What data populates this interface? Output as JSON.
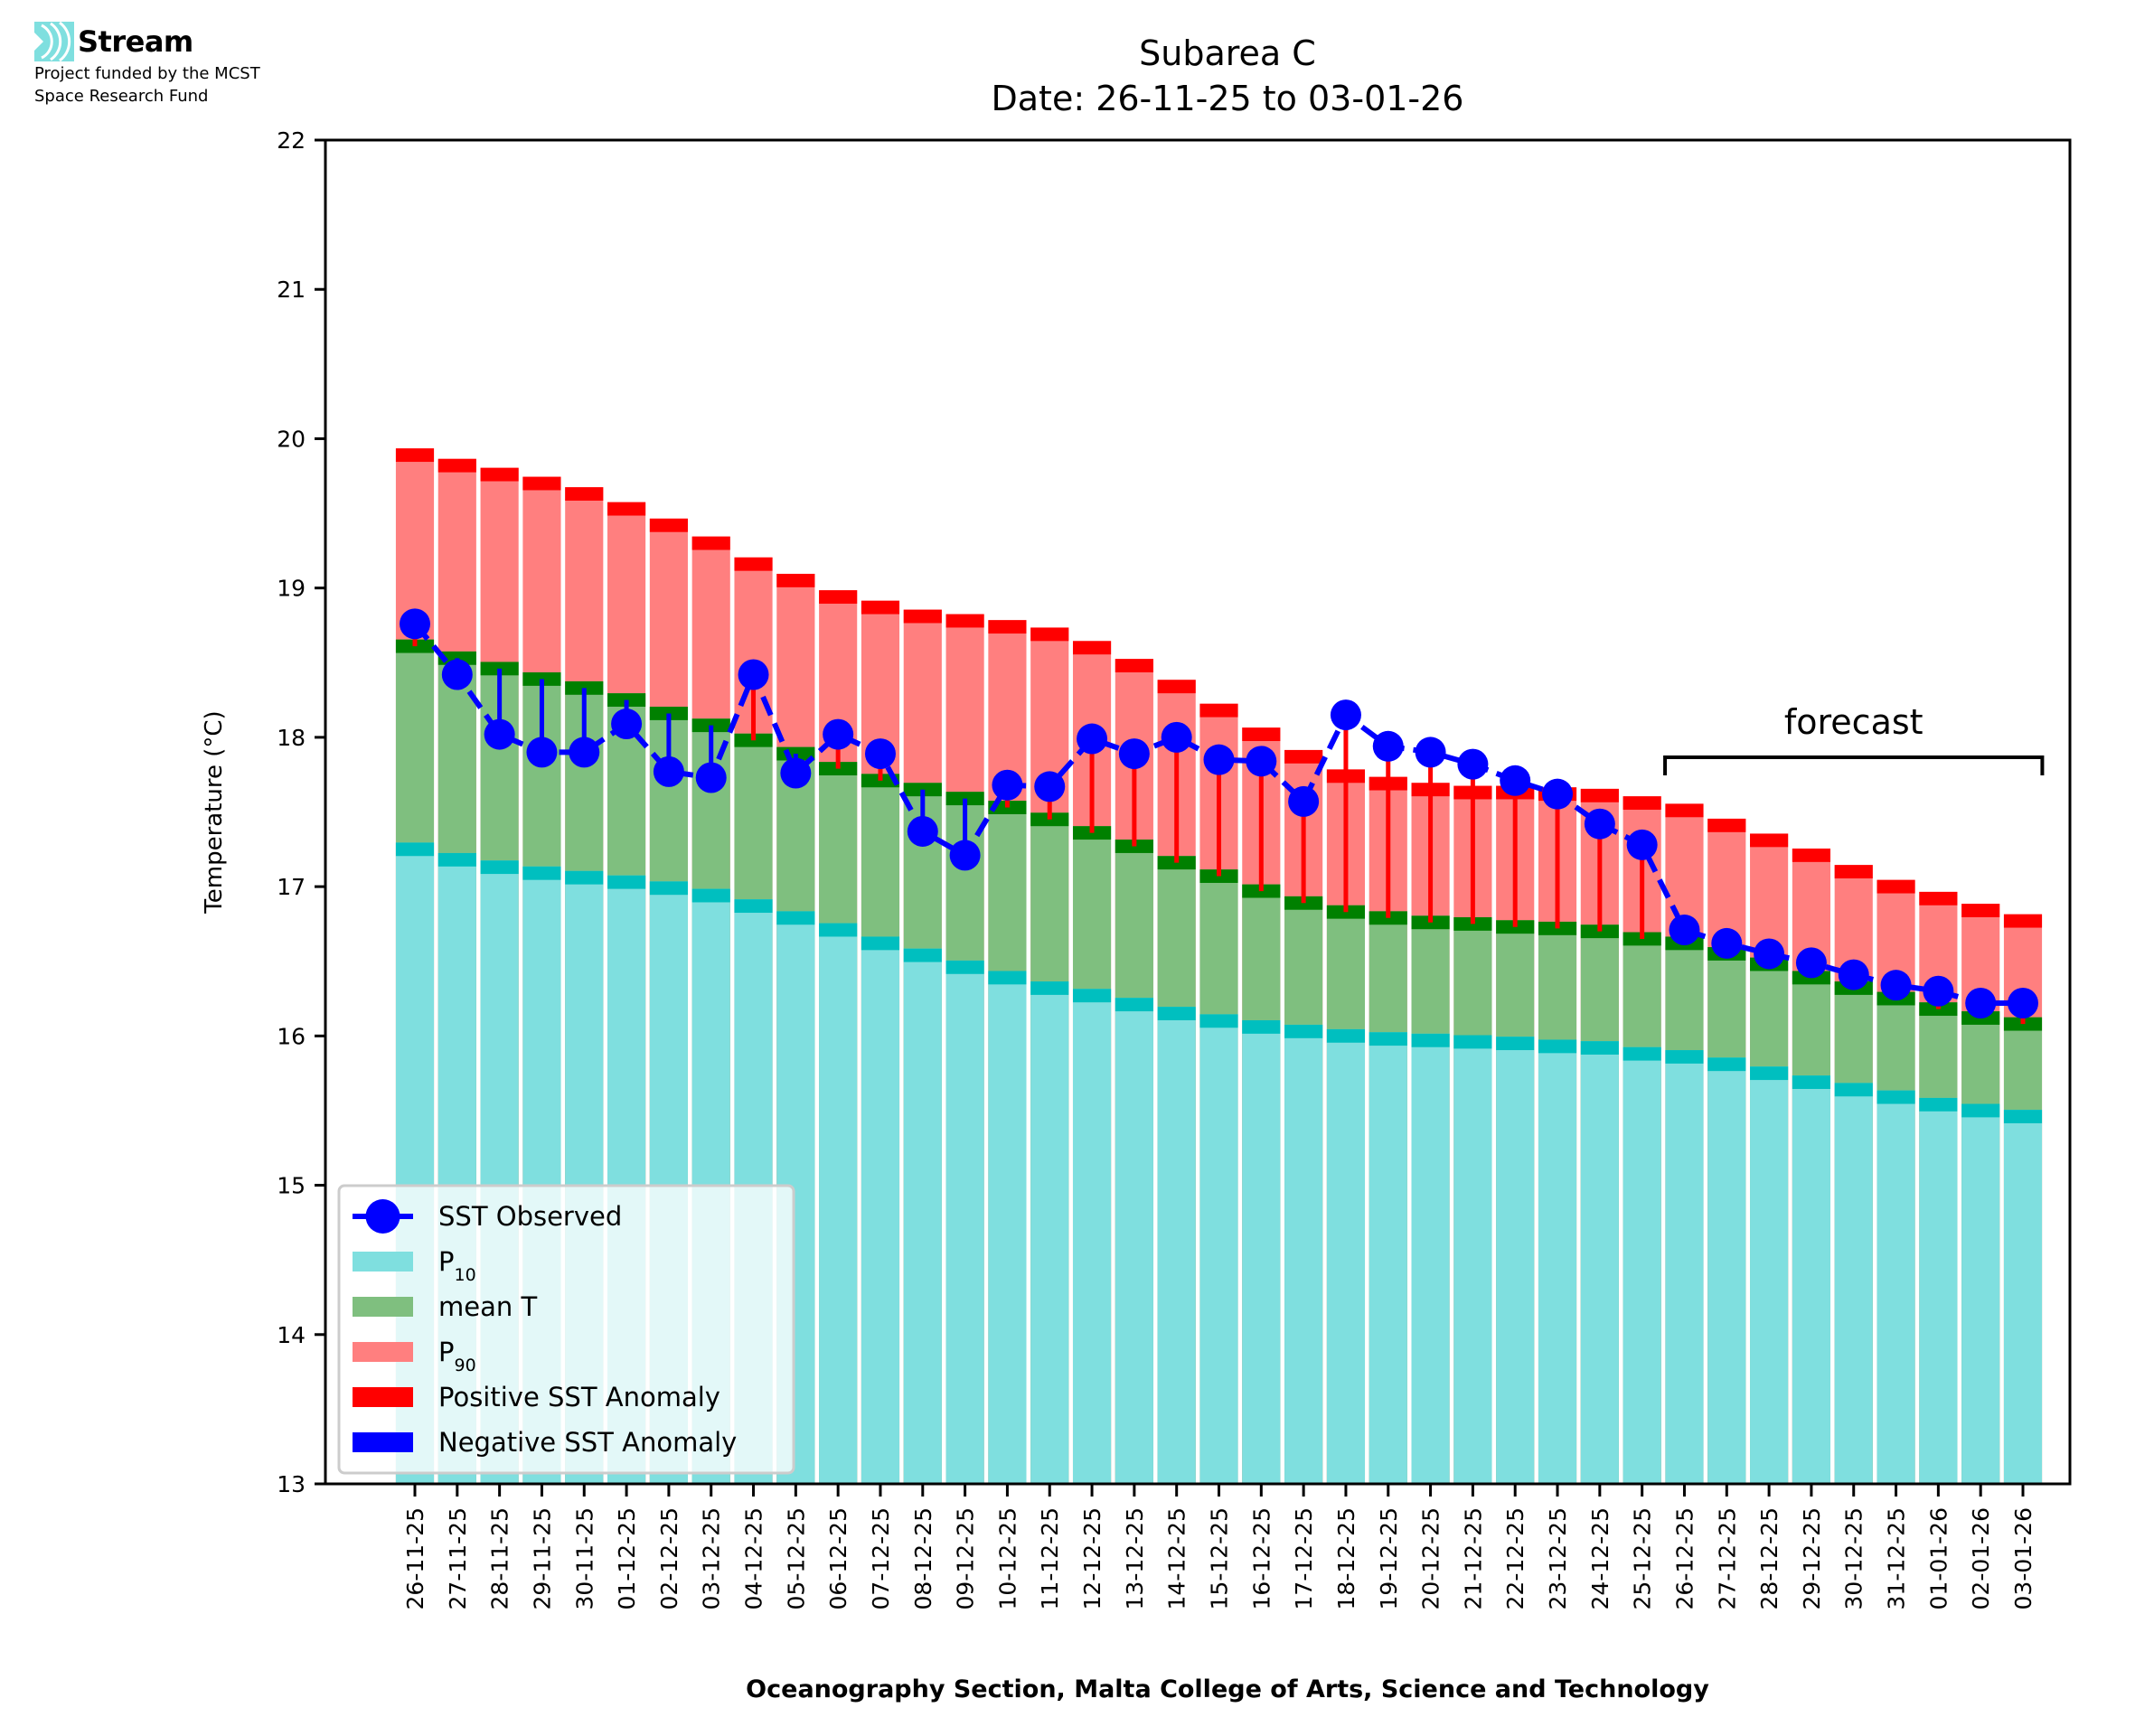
{
  "logo": {
    "name": "Stream",
    "funding_line_1": "Project funded by the MCST",
    "funding_line_2": "Space Research Fund",
    "icon": "stream-waves-icon",
    "icon_color": "#7fdfdf"
  },
  "chart_data": {
    "type": "bar",
    "title": "Subarea C",
    "subtitle": "Date: 26-11-25 to 03-01-26",
    "xlabel": "Oceanography Section, Malta College of Arts, Science and Technology",
    "ylabel": "Temperature (°C)",
    "ylim": [
      13,
      22
    ],
    "yticks": [
      13,
      14,
      15,
      16,
      17,
      18,
      19,
      20,
      21,
      22
    ],
    "grid": false,
    "legend_position": "lower-left",
    "categories": [
      "26-11-25",
      "27-11-25",
      "28-11-25",
      "29-11-25",
      "30-11-25",
      "01-12-25",
      "02-12-25",
      "03-12-25",
      "04-12-25",
      "05-12-25",
      "06-12-25",
      "07-12-25",
      "08-12-25",
      "09-12-25",
      "10-12-25",
      "11-12-25",
      "12-12-25",
      "13-12-25",
      "14-12-25",
      "15-12-25",
      "16-12-25",
      "17-12-25",
      "18-12-25",
      "19-12-25",
      "20-12-25",
      "21-12-25",
      "22-12-25",
      "23-12-25",
      "24-12-25",
      "25-12-25",
      "26-12-25",
      "27-12-25",
      "28-12-25",
      "29-12-25",
      "30-12-25",
      "31-12-25",
      "01-01-26",
      "02-01-26",
      "03-01-26"
    ],
    "series": [
      {
        "name": "P90",
        "legend_label": "P",
        "legend_sub": "90",
        "color": "#ff7f7f",
        "edge_color": "#ff0000",
        "values": [
          19.89,
          19.82,
          19.76,
          19.7,
          19.63,
          19.53,
          19.42,
          19.3,
          19.16,
          19.05,
          18.94,
          18.87,
          18.81,
          18.78,
          18.74,
          18.69,
          18.6,
          18.48,
          18.34,
          18.18,
          18.02,
          17.87,
          17.74,
          17.69,
          17.65,
          17.63,
          17.63,
          17.62,
          17.61,
          17.56,
          17.51,
          17.41,
          17.31,
          17.21,
          17.1,
          17.0,
          16.92,
          16.84,
          16.77
        ]
      },
      {
        "name": "mean T",
        "legend_label": "mean T",
        "legend_sub": "",
        "color": "#7fbf7f",
        "edge_color": "#008000",
        "values": [
          18.61,
          18.53,
          18.46,
          18.39,
          18.33,
          18.25,
          18.16,
          18.08,
          17.98,
          17.89,
          17.79,
          17.71,
          17.65,
          17.59,
          17.53,
          17.45,
          17.36,
          17.27,
          17.16,
          17.07,
          16.97,
          16.89,
          16.83,
          16.79,
          16.76,
          16.75,
          16.73,
          16.72,
          16.7,
          16.65,
          16.62,
          16.55,
          16.48,
          16.39,
          16.32,
          16.25,
          16.18,
          16.12,
          16.08
        ]
      },
      {
        "name": "P10",
        "legend_label": "P",
        "legend_sub": "10",
        "color": "#7fdfdf",
        "edge_color": "#00bfbf",
        "values": [
          17.25,
          17.18,
          17.13,
          17.09,
          17.06,
          17.03,
          16.99,
          16.94,
          16.87,
          16.79,
          16.71,
          16.62,
          16.54,
          16.46,
          16.39,
          16.32,
          16.27,
          16.21,
          16.15,
          16.1,
          16.06,
          16.03,
          16.0,
          15.98,
          15.97,
          15.96,
          15.95,
          15.93,
          15.92,
          15.88,
          15.86,
          15.81,
          15.75,
          15.69,
          15.64,
          15.59,
          15.54,
          15.5,
          15.46
        ]
      },
      {
        "name": "SST Observed",
        "legend_label": "SST Observed",
        "color": "#0000ff",
        "type": "line",
        "values": [
          18.76,
          18.42,
          18.02,
          17.9,
          17.9,
          18.09,
          17.77,
          17.73,
          18.42,
          17.76,
          18.02,
          17.89,
          17.37,
          17.21,
          17.68,
          17.67,
          17.99,
          17.89,
          18.0,
          17.85,
          17.84,
          17.57,
          18.15,
          17.94,
          17.9,
          17.82,
          17.71,
          17.62,
          17.42,
          17.28,
          16.71,
          16.62,
          16.55,
          16.49,
          16.41,
          16.34,
          16.3,
          16.22,
          16.22
        ]
      }
    ],
    "anomaly_legend": [
      {
        "label": "Positive SST Anomaly",
        "color": "#ff0000"
      },
      {
        "label": "Negative SST Anomaly",
        "color": "#0000ff"
      }
    ],
    "annotation": {
      "text": "forecast",
      "from_category": "26-12-25",
      "to_category": "03-01-26"
    }
  }
}
